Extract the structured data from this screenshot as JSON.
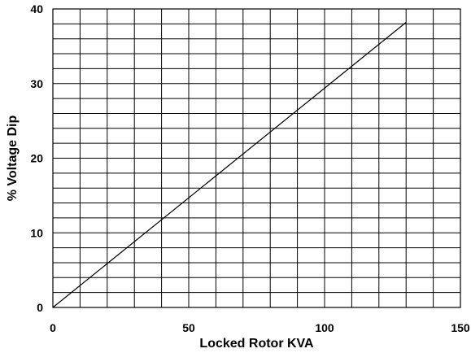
{
  "chart_data": {
    "type": "line",
    "title": "",
    "xlabel": "Locked Rotor KVA",
    "ylabel": "% Voltage Dip",
    "xlim": [
      0,
      150
    ],
    "ylim": [
      0,
      40
    ],
    "x_ticks": [
      0,
      50,
      100,
      150
    ],
    "y_ticks": [
      0,
      10,
      20,
      30,
      40
    ],
    "x_tick_labels": [
      "0",
      "50",
      "100",
      "150"
    ],
    "y_tick_labels": [
      "0",
      "10",
      "20",
      "30",
      "40"
    ],
    "x_minor_step": 10,
    "y_minor_step": 2,
    "grid": true,
    "legend": "none",
    "line_color": "#000000",
    "grid_color": "#000000",
    "series": [
      {
        "x": [
          0,
          130
        ],
        "y": [
          0,
          38.2
        ]
      }
    ]
  }
}
